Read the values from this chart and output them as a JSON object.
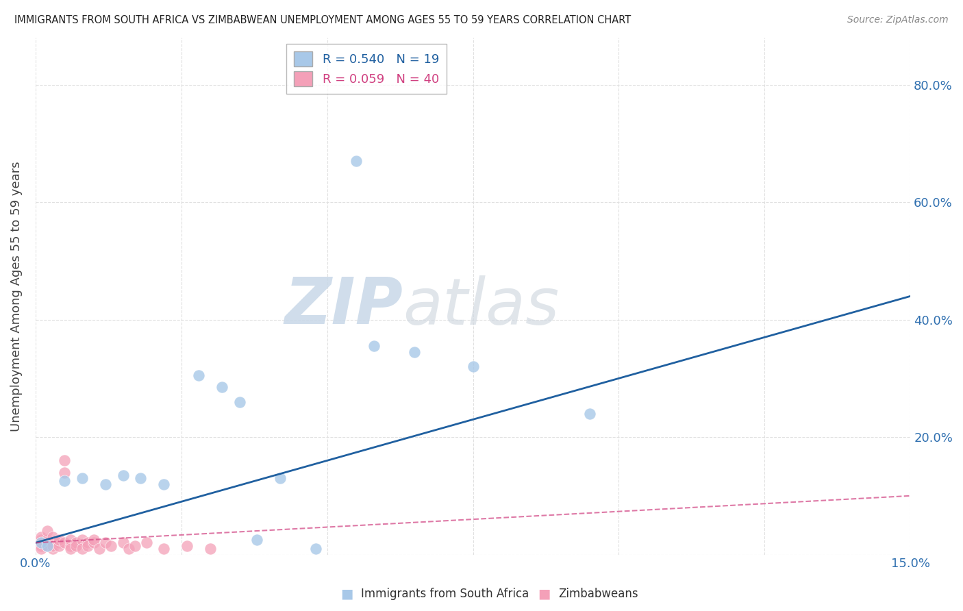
{
  "title": "IMMIGRANTS FROM SOUTH AFRICA VS ZIMBABWEAN UNEMPLOYMENT AMONG AGES 55 TO 59 YEARS CORRELATION CHART",
  "source": "Source: ZipAtlas.com",
  "ylabel": "Unemployment Among Ages 55 to 59 years",
  "xlim": [
    0.0,
    0.15
  ],
  "ylim": [
    0.0,
    0.88
  ],
  "blue_R": 0.54,
  "blue_N": 19,
  "pink_R": 0.059,
  "pink_N": 40,
  "blue_x": [
    0.001,
    0.002,
    0.028,
    0.032,
    0.035,
    0.055,
    0.065,
    0.075,
    0.095,
    0.005,
    0.008,
    0.012,
    0.015,
    0.018,
    0.022,
    0.038,
    0.042,
    0.048,
    0.058
  ],
  "blue_y": [
    0.02,
    0.015,
    0.305,
    0.285,
    0.26,
    0.67,
    0.345,
    0.32,
    0.24,
    0.125,
    0.13,
    0.12,
    0.135,
    0.13,
    0.12,
    0.025,
    0.13,
    0.01,
    0.355
  ],
  "pink_x": [
    0.001,
    0.001,
    0.001,
    0.001,
    0.001,
    0.002,
    0.002,
    0.002,
    0.002,
    0.003,
    0.003,
    0.003,
    0.003,
    0.004,
    0.004,
    0.004,
    0.005,
    0.005,
    0.005,
    0.006,
    0.006,
    0.006,
    0.007,
    0.007,
    0.008,
    0.008,
    0.009,
    0.009,
    0.01,
    0.01,
    0.011,
    0.012,
    0.013,
    0.015,
    0.016,
    0.017,
    0.019,
    0.022,
    0.026,
    0.03
  ],
  "pink_y": [
    0.02,
    0.015,
    0.025,
    0.01,
    0.03,
    0.02,
    0.015,
    0.025,
    0.04,
    0.01,
    0.02,
    0.03,
    0.015,
    0.02,
    0.015,
    0.025,
    0.16,
    0.14,
    0.02,
    0.015,
    0.025,
    0.01,
    0.02,
    0.015,
    0.025,
    0.01,
    0.02,
    0.015,
    0.02,
    0.025,
    0.01,
    0.02,
    0.015,
    0.02,
    0.01,
    0.015,
    0.02,
    0.01,
    0.015,
    0.01
  ],
  "blue_color": "#a8c8e8",
  "pink_color": "#f4a0b8",
  "blue_line_color": "#2060a0",
  "pink_line_color": "#d04080",
  "background_color": "#ffffff",
  "grid_color": "#e0e0e0"
}
